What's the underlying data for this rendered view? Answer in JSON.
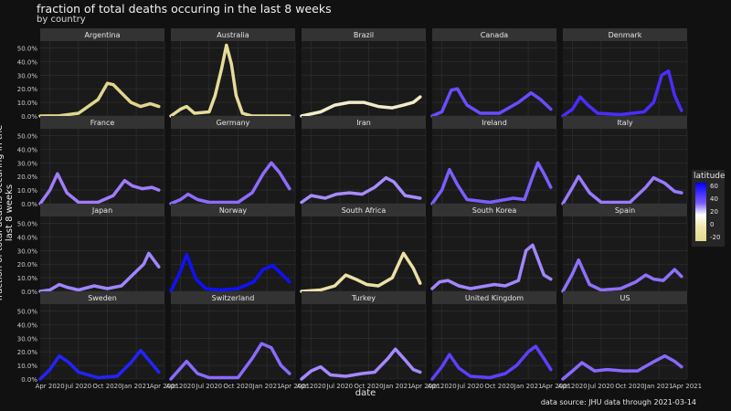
{
  "title": "fraction of total deaths occuring in the last 8 weeks",
  "subtitle": "by country",
  "caption": "data source: JHU data through 2021-03-14",
  "chart_data": {
    "type": "line",
    "xlabel": "date",
    "ylabel": "fraction of total deaths occuring in the last 8 weeks",
    "ylim": [
      0,
      0.55
    ],
    "y_ticks": [
      "0.0%",
      "10.0%",
      "20.0%",
      "30.0%",
      "40.0%",
      "50.0%"
    ],
    "x_ticks": [
      "Apr 2020",
      "Jul 2020",
      "Oct 2020",
      "Jan 2021",
      "Apr 2021"
    ],
    "x_range": [
      "2020-03-01",
      "2021-04-01"
    ],
    "grid": true,
    "legend": {
      "title": "latitude",
      "position": "right",
      "ticks": [
        "60",
        "40",
        "20",
        "0",
        "-20"
      ]
    },
    "panels": [
      {
        "name": "Argentina",
        "color": "#e0d68f",
        "x": [
          "2020-03-01",
          "2020-05-01",
          "2020-07-01",
          "2020-08-01",
          "2020-09-01",
          "2020-10-01",
          "2020-10-20",
          "2020-11-15",
          "2020-12-15",
          "2021-01-15",
          "2021-02-15",
          "2021-03-14"
        ],
        "y": [
          0,
          0.002,
          0.02,
          0.07,
          0.12,
          0.24,
          0.23,
          0.17,
          0.1,
          0.07,
          0.09,
          0.07
        ]
      },
      {
        "name": "Australia",
        "color": "#e6dc9a",
        "x": [
          "2020-03-01",
          "2020-04-01",
          "2020-04-20",
          "2020-05-15",
          "2020-07-01",
          "2020-07-20",
          "2020-08-10",
          "2020-08-25",
          "2020-09-10",
          "2020-09-25",
          "2020-10-15",
          "2020-11-15",
          "2021-03-14"
        ],
        "y": [
          0,
          0.05,
          0.07,
          0.02,
          0.03,
          0.15,
          0.35,
          0.52,
          0.38,
          0.15,
          0.02,
          0,
          0
        ]
      },
      {
        "name": "Brazil",
        "color": "#f2ecca",
        "x": [
          "2020-03-01",
          "2020-05-01",
          "2020-06-15",
          "2020-08-01",
          "2020-09-15",
          "2020-11-01",
          "2020-12-15",
          "2021-01-20",
          "2021-02-20",
          "2021-03-14"
        ],
        "y": [
          0,
          0.03,
          0.08,
          0.1,
          0.1,
          0.07,
          0.06,
          0.08,
          0.1,
          0.14
        ]
      },
      {
        "name": "Canada",
        "color": "#6b4cff",
        "x": [
          "2020-03-01",
          "2020-04-01",
          "2020-05-01",
          "2020-05-20",
          "2020-06-20",
          "2020-08-01",
          "2020-10-01",
          "2020-12-01",
          "2021-01-10",
          "2021-02-10",
          "2021-03-14"
        ],
        "y": [
          0,
          0.03,
          0.19,
          0.2,
          0.08,
          0.02,
          0.02,
          0.1,
          0.17,
          0.12,
          0.05
        ]
      },
      {
        "name": "Denmark",
        "color": "#4a2dff",
        "x": [
          "2020-03-01",
          "2020-04-01",
          "2020-04-25",
          "2020-05-20",
          "2020-06-20",
          "2020-09-01",
          "2020-11-15",
          "2020-12-15",
          "2021-01-10",
          "2021-02-01",
          "2021-02-20",
          "2021-03-14"
        ],
        "y": [
          0,
          0.05,
          0.14,
          0.08,
          0.02,
          0.01,
          0.03,
          0.1,
          0.3,
          0.33,
          0.15,
          0.04
        ]
      },
      {
        "name": "France",
        "color": "#9f7dff",
        "x": [
          "2020-03-01",
          "2020-04-01",
          "2020-04-25",
          "2020-05-25",
          "2020-07-01",
          "2020-09-01",
          "2020-10-20",
          "2020-11-25",
          "2020-12-20",
          "2021-01-20",
          "2021-02-20",
          "2021-03-14"
        ],
        "y": [
          0,
          0.1,
          0.22,
          0.08,
          0.01,
          0.01,
          0.06,
          0.17,
          0.13,
          0.11,
          0.12,
          0.1
        ]
      },
      {
        "name": "Germany",
        "color": "#8e6cff",
        "x": [
          "2020-03-01",
          "2020-04-01",
          "2020-04-25",
          "2020-05-25",
          "2020-07-01",
          "2020-10-01",
          "2020-11-15",
          "2020-12-20",
          "2021-01-15",
          "2021-02-10",
          "2021-03-14"
        ],
        "y": [
          0,
          0.03,
          0.07,
          0.03,
          0.01,
          0.01,
          0.08,
          0.22,
          0.3,
          0.23,
          0.11
        ]
      },
      {
        "name": "Iran",
        "color": "#a68cff",
        "x": [
          "2020-03-01",
          "2020-04-01",
          "2020-05-15",
          "2020-06-20",
          "2020-08-01",
          "2020-09-10",
          "2020-10-20",
          "2020-11-25",
          "2020-12-20",
          "2021-01-25",
          "2021-03-14"
        ],
        "y": [
          0.01,
          0.06,
          0.04,
          0.07,
          0.08,
          0.07,
          0.12,
          0.19,
          0.16,
          0.06,
          0.04
        ]
      },
      {
        "name": "Ireland",
        "color": "#7c5eff",
        "x": [
          "2020-03-01",
          "2020-04-01",
          "2020-04-25",
          "2020-05-20",
          "2020-06-20",
          "2020-09-01",
          "2020-11-15",
          "2020-12-20",
          "2021-01-15",
          "2021-02-01",
          "2021-02-20",
          "2021-03-14"
        ],
        "y": [
          0,
          0.1,
          0.25,
          0.14,
          0.03,
          0.01,
          0.04,
          0.03,
          0.2,
          0.3,
          0.22,
          0.12
        ]
      },
      {
        "name": "Italy",
        "color": "#9a7aff",
        "x": [
          "2020-03-01",
          "2020-04-01",
          "2020-04-20",
          "2020-05-25",
          "2020-07-01",
          "2020-10-01",
          "2020-11-20",
          "2020-12-15",
          "2021-01-20",
          "2021-02-20",
          "2021-03-14"
        ],
        "y": [
          0,
          0.12,
          0.2,
          0.08,
          0.01,
          0.01,
          0.12,
          0.19,
          0.15,
          0.09,
          0.08
        ]
      },
      {
        "name": "Japan",
        "color": "#a085ff",
        "x": [
          "2020-03-01",
          "2020-04-01",
          "2020-05-01",
          "2020-05-25",
          "2020-07-01",
          "2020-08-20",
          "2020-10-01",
          "2020-11-15",
          "2020-12-20",
          "2021-01-25",
          "2021-02-10",
          "2021-03-14"
        ],
        "y": [
          0,
          0.01,
          0.05,
          0.03,
          0.01,
          0.04,
          0.02,
          0.04,
          0.12,
          0.2,
          0.28,
          0.18
        ]
      },
      {
        "name": "Norway",
        "color": "#1010ff",
        "x": [
          "2020-03-01",
          "2020-04-01",
          "2020-04-20",
          "2020-05-20",
          "2020-06-20",
          "2020-08-01",
          "2020-10-01",
          "2020-11-20",
          "2020-12-20",
          "2021-01-20",
          "2021-02-20",
          "2021-03-14"
        ],
        "y": [
          0,
          0.15,
          0.27,
          0.09,
          0.02,
          0.01,
          0.02,
          0.07,
          0.16,
          0.19,
          0.12,
          0.07
        ]
      },
      {
        "name": "South Africa",
        "color": "#ebe1a6",
        "x": [
          "2020-03-01",
          "2020-05-01",
          "2020-06-15",
          "2020-07-20",
          "2020-08-20",
          "2020-09-25",
          "2020-11-01",
          "2020-12-15",
          "2021-01-20",
          "2021-02-20",
          "2021-03-14"
        ],
        "y": [
          0,
          0.01,
          0.04,
          0.12,
          0.09,
          0.05,
          0.04,
          0.1,
          0.28,
          0.17,
          0.06
        ]
      },
      {
        "name": "South Korea",
        "color": "#a286ff",
        "x": [
          "2020-03-01",
          "2020-03-25",
          "2020-04-20",
          "2020-05-25",
          "2020-07-01",
          "2020-09-15",
          "2020-10-20",
          "2020-12-01",
          "2020-12-25",
          "2021-01-15",
          "2021-02-20",
          "2021-03-14"
        ],
        "y": [
          0.02,
          0.07,
          0.08,
          0.04,
          0.02,
          0.05,
          0.04,
          0.08,
          0.3,
          0.34,
          0.12,
          0.09
        ]
      },
      {
        "name": "Spain",
        "color": "#8f70ff",
        "x": [
          "2020-03-01",
          "2020-04-01",
          "2020-04-20",
          "2020-05-25",
          "2020-07-01",
          "2020-09-01",
          "2020-10-20",
          "2020-11-20",
          "2020-12-15",
          "2021-01-15",
          "2021-02-20",
          "2021-03-14"
        ],
        "y": [
          0,
          0.13,
          0.23,
          0.05,
          0.01,
          0.02,
          0.07,
          0.12,
          0.09,
          0.08,
          0.16,
          0.11
        ]
      },
      {
        "name": "Sweden",
        "color": "#2323ff",
        "x": [
          "2020-03-01",
          "2020-04-01",
          "2020-05-01",
          "2020-06-01",
          "2020-07-01",
          "2020-09-01",
          "2020-11-01",
          "2020-12-15",
          "2021-01-15",
          "2021-02-10",
          "2021-03-14"
        ],
        "y": [
          0,
          0.07,
          0.17,
          0.12,
          0.05,
          0.01,
          0.02,
          0.12,
          0.21,
          0.14,
          0.05
        ]
      },
      {
        "name": "Switzerland",
        "color": "#8a6bff",
        "x": [
          "2020-03-01",
          "2020-04-01",
          "2020-04-20",
          "2020-05-25",
          "2020-07-01",
          "2020-10-01",
          "2020-11-15",
          "2020-12-15",
          "2021-01-15",
          "2021-02-15",
          "2021-03-14"
        ],
        "y": [
          0,
          0.08,
          0.13,
          0.04,
          0.01,
          0.01,
          0.15,
          0.26,
          0.23,
          0.1,
          0.04
        ]
      },
      {
        "name": "Turkey",
        "color": "#a589ff",
        "x": [
          "2020-03-01",
          "2020-04-01",
          "2020-05-01",
          "2020-06-01",
          "2020-07-20",
          "2020-09-10",
          "2020-10-20",
          "2020-12-01",
          "2020-12-25",
          "2021-01-25",
          "2021-02-20",
          "2021-03-14"
        ],
        "y": [
          0,
          0.06,
          0.09,
          0.03,
          0.02,
          0.04,
          0.05,
          0.15,
          0.22,
          0.14,
          0.07,
          0.05
        ]
      },
      {
        "name": "United Kingdom",
        "color": "#5e40ff",
        "x": [
          "2020-03-01",
          "2020-04-01",
          "2020-04-25",
          "2020-05-25",
          "2020-07-01",
          "2020-09-01",
          "2020-10-20",
          "2020-11-25",
          "2021-01-01",
          "2021-01-25",
          "2021-02-20",
          "2021-03-14"
        ],
        "y": [
          0,
          0.09,
          0.18,
          0.08,
          0.02,
          0.01,
          0.04,
          0.1,
          0.2,
          0.24,
          0.15,
          0.07
        ]
      },
      {
        "name": "US",
        "color": "#8868ff",
        "x": [
          "2020-03-01",
          "2020-04-01",
          "2020-05-01",
          "2020-06-10",
          "2020-07-20",
          "2020-09-10",
          "2020-10-25",
          "2020-12-10",
          "2021-01-20",
          "2021-02-20",
          "2021-03-14"
        ],
        "y": [
          0,
          0.06,
          0.12,
          0.06,
          0.07,
          0.06,
          0.06,
          0.12,
          0.17,
          0.13,
          0.09
        ]
      }
    ]
  }
}
